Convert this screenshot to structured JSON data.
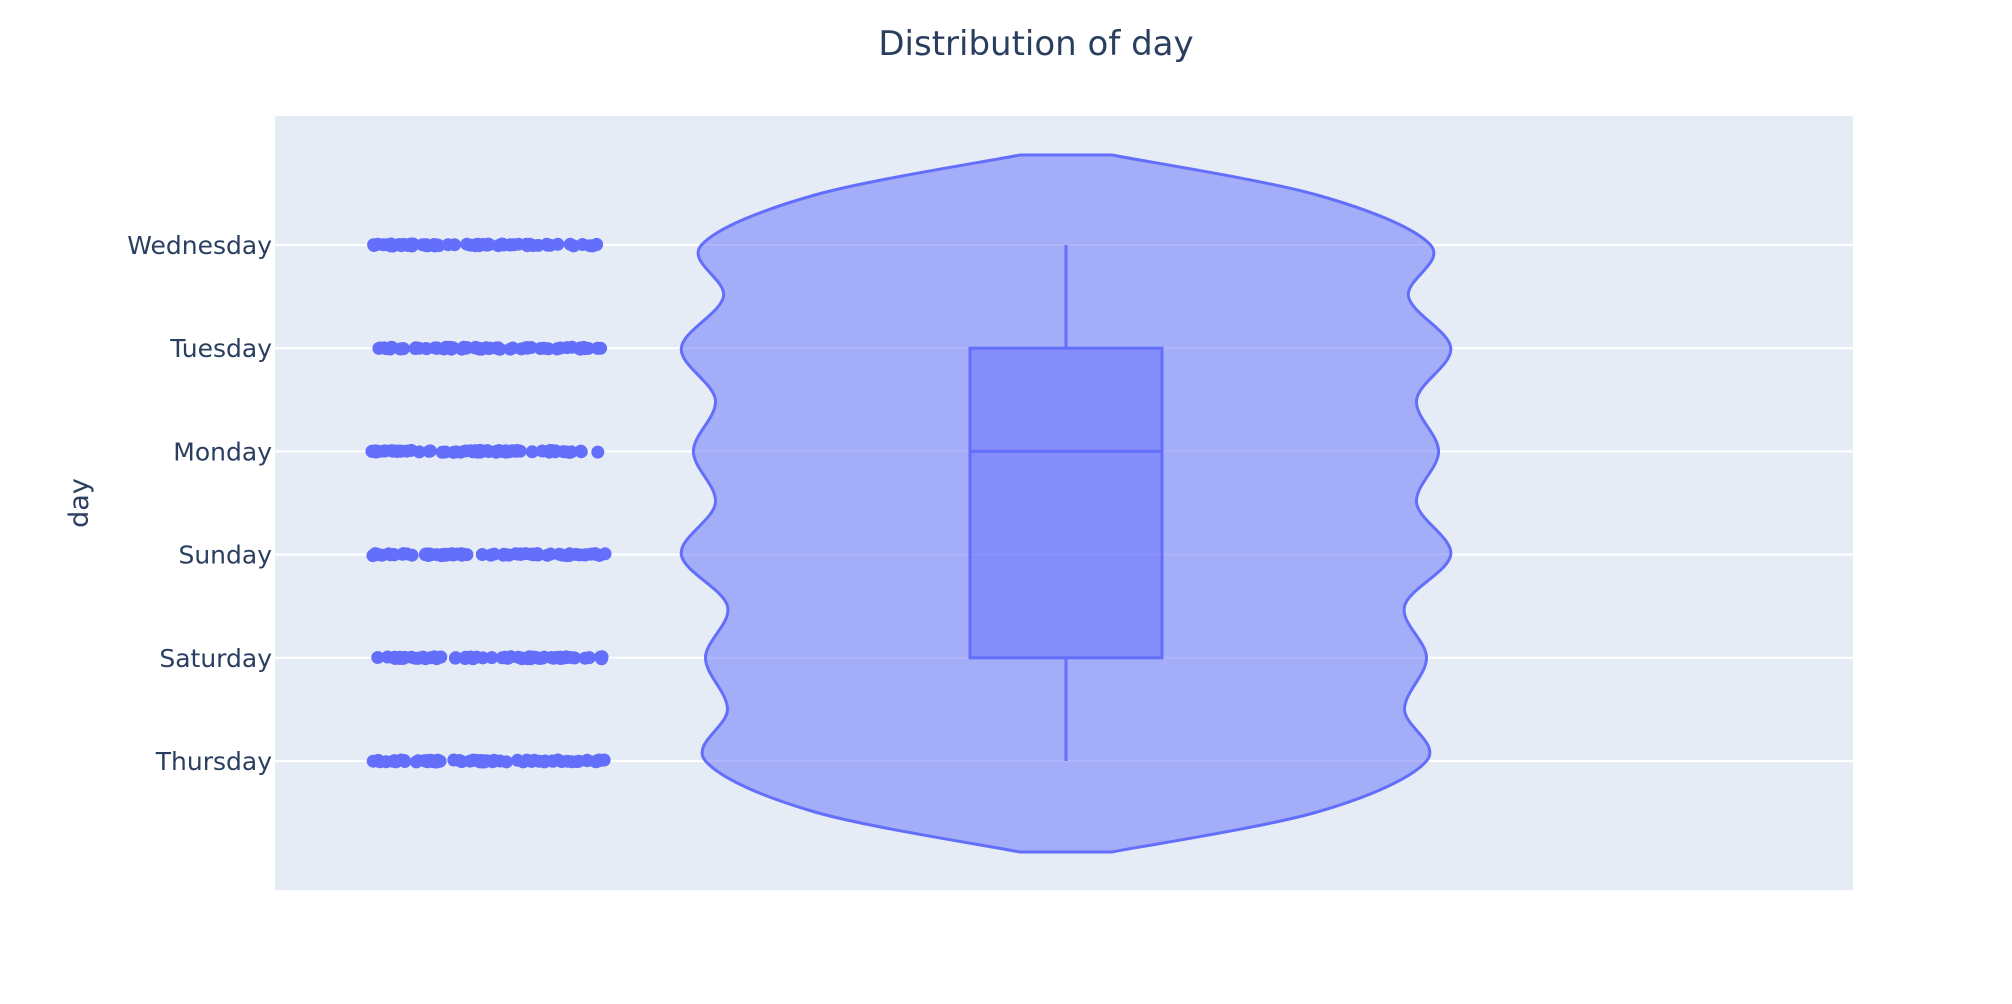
{
  "chart_data": {
    "type": "violin",
    "title": "Distribution of day",
    "xlabel": "",
    "ylabel": "day",
    "categories": [
      "Wednesday",
      "Tuesday",
      "Monday",
      "Sunday",
      "Saturday",
      "Thursday"
    ],
    "orientation": "vertical",
    "points": "all",
    "box": {
      "lower_fence": "Thursday",
      "q1": "Saturday",
      "median": "Monday",
      "q3": "Tuesday",
      "upper_fence": "Wednesday"
    },
    "violin_half_width": [
      {
        "day": "Thursday",
        "value": 0.89
      },
      {
        "day": "Saturday",
        "value": 0.89
      },
      {
        "day": "Sunday",
        "value": 0.95
      },
      {
        "day": "Monday",
        "value": 0.92
      },
      {
        "day": "Tuesday",
        "value": 0.95
      },
      {
        "day": "Wednesday",
        "value": 0.9
      }
    ],
    "grid": true,
    "legend": "none",
    "colors": {
      "series": "#636efa",
      "plot_bg": "#e5ecf6",
      "grid": "#ffffff",
      "text": "#2a3f5f"
    }
  }
}
